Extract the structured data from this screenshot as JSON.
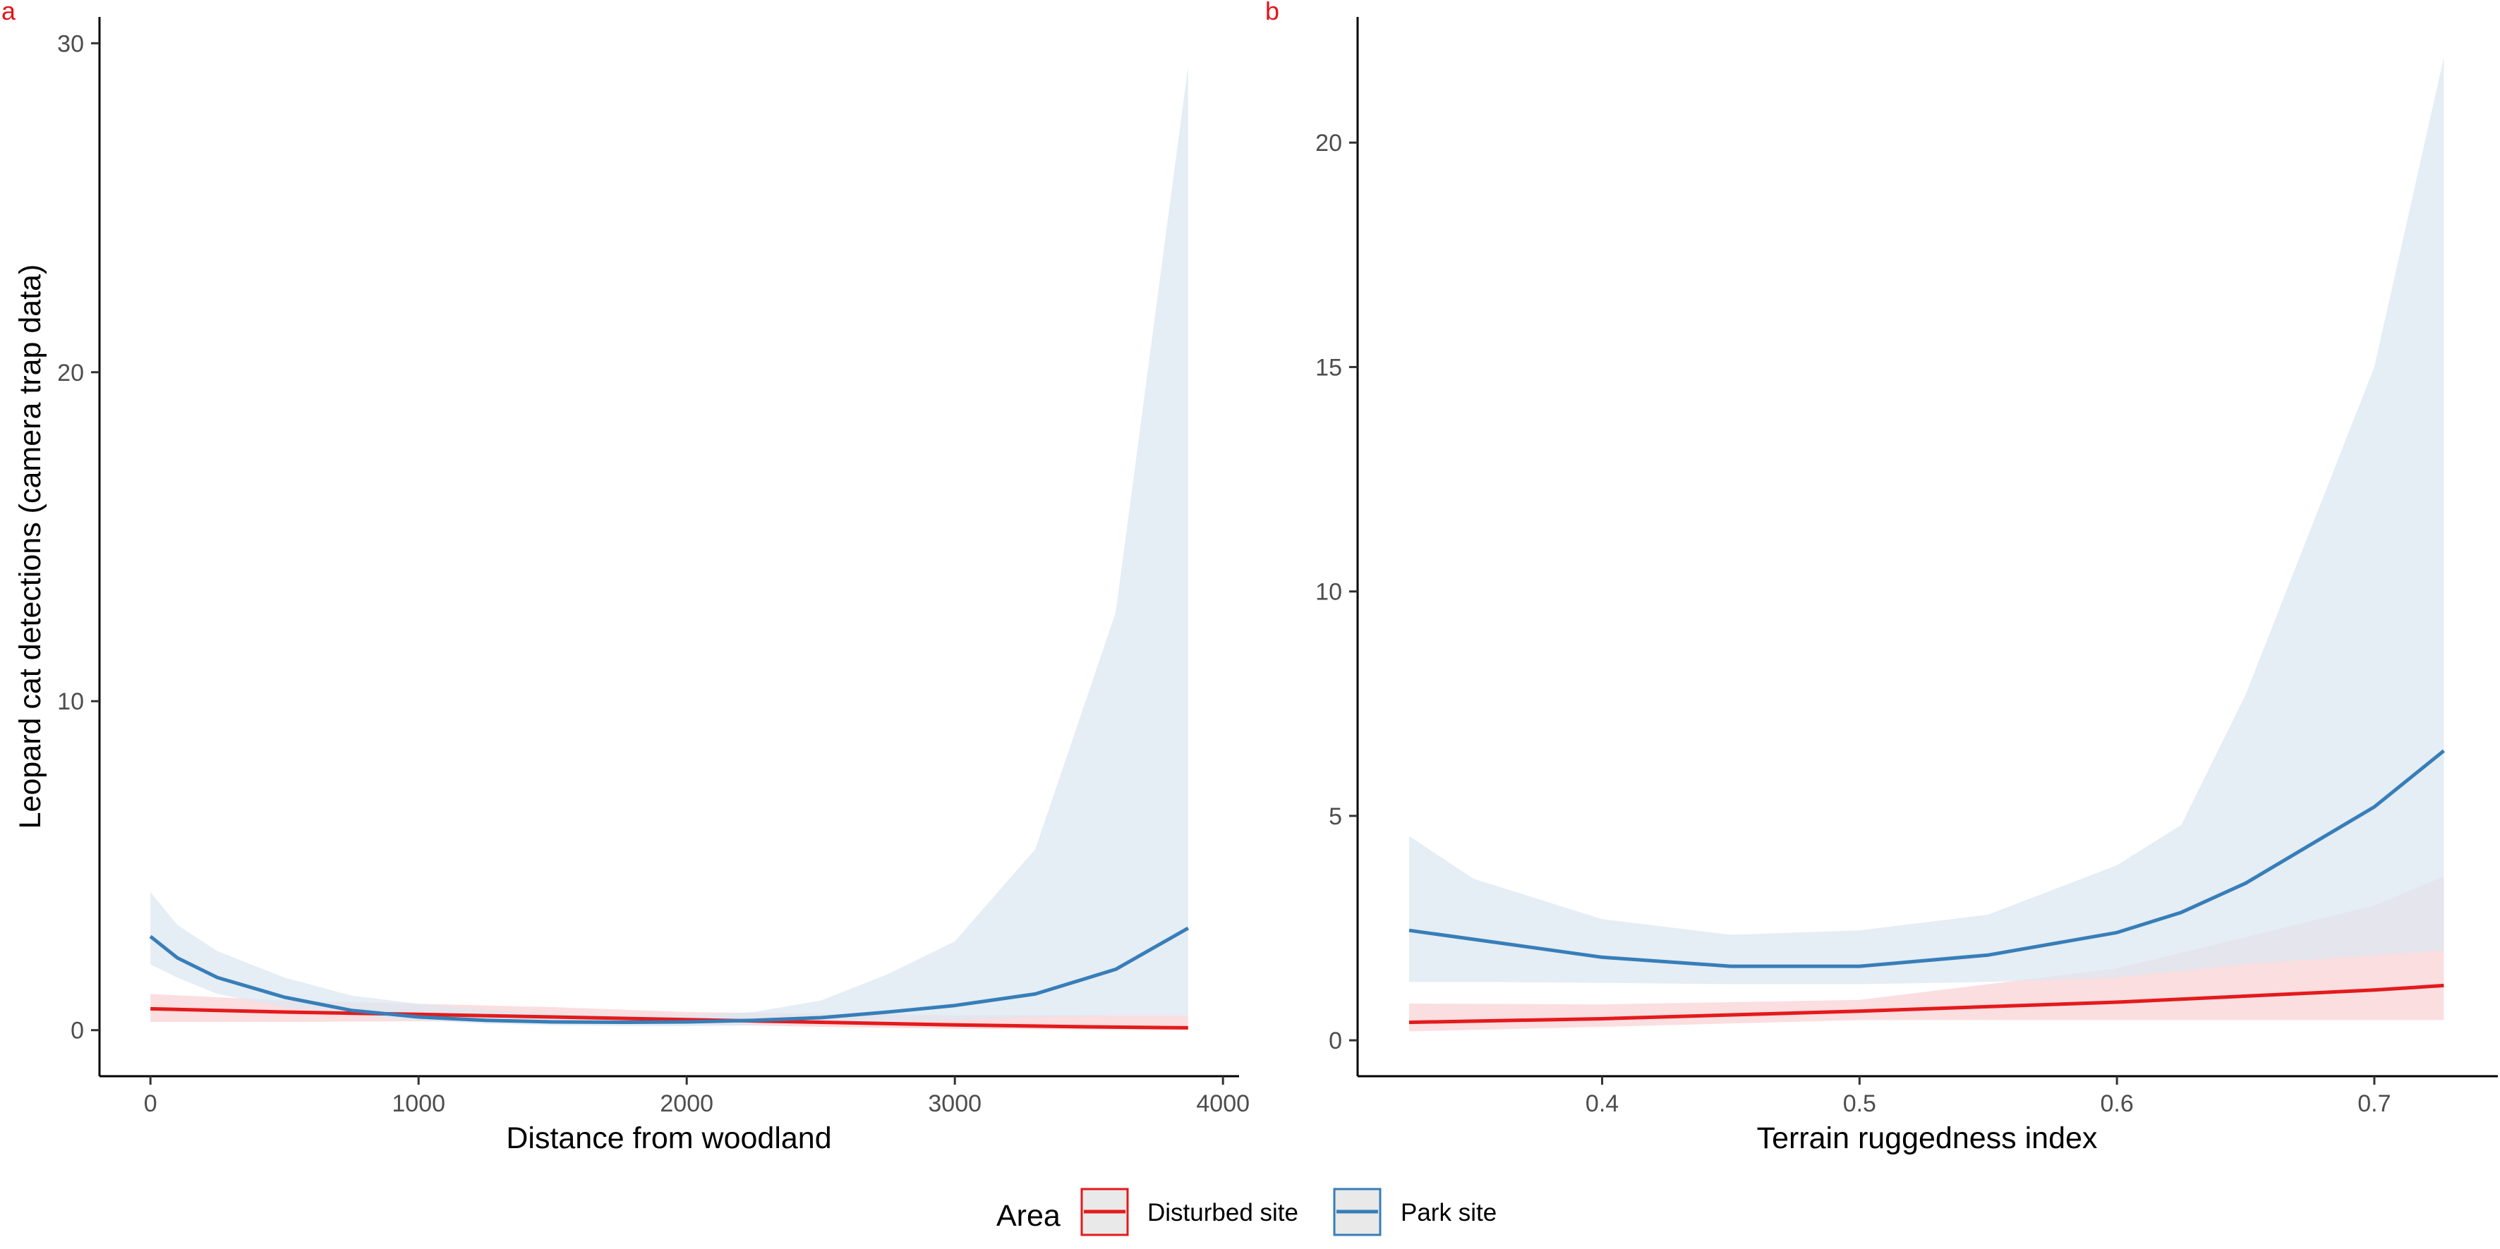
{
  "legend": {
    "title": "Area",
    "entries": [
      {
        "label": "Disturbed site",
        "color": "#E41A1C"
      },
      {
        "label": "Park site",
        "color": "#377EB8"
      }
    ]
  },
  "colors": {
    "disturbed_line": "#E41A1C",
    "disturbed_ribbon": "#F8D3D6",
    "park_line": "#377EB8",
    "park_ribbon": "#DCE7F2"
  },
  "chart_data": [
    {
      "panel": "a",
      "type": "line",
      "xlabel": "Distance from woodland",
      "ylabel": "Leopard cat detections (camera trap data)",
      "xlim": [
        -190,
        4060
      ],
      "ylim": [
        -1.4,
        30.8
      ],
      "xticks": [
        0,
        1000,
        2000,
        3000,
        4000
      ],
      "yticks": [
        0,
        10,
        20,
        30
      ],
      "grid": false,
      "legend_position": "bottom",
      "series": [
        {
          "name": "Disturbed site",
          "x": [
            0,
            500,
            1000,
            1500,
            2000,
            2500,
            3000,
            3500,
            3870
          ],
          "y": [
            0.65,
            0.55,
            0.48,
            0.4,
            0.32,
            0.24,
            0.16,
            0.1,
            0.07
          ],
          "lower": [
            0.25,
            0.25,
            0.27,
            0.25,
            0.18,
            0.1,
            0.04,
            0.02,
            0.01
          ],
          "upper": [
            1.1,
            0.9,
            0.8,
            0.7,
            0.55,
            0.5,
            0.45,
            0.45,
            0.45
          ]
        },
        {
          "name": "Park site",
          "x": [
            0,
            100,
            250,
            500,
            750,
            1000,
            1250,
            1500,
            1750,
            2000,
            2250,
            2500,
            2750,
            3000,
            3300,
            3600,
            3870
          ],
          "y": [
            2.85,
            2.2,
            1.6,
            1.0,
            0.6,
            0.4,
            0.3,
            0.25,
            0.24,
            0.25,
            0.3,
            0.38,
            0.55,
            0.75,
            1.1,
            1.85,
            3.1
          ],
          "lower": [
            2.0,
            1.6,
            1.1,
            0.7,
            0.45,
            0.3,
            0.2,
            0.15,
            0.13,
            0.12,
            0.15,
            0.2,
            0.25,
            0.3,
            0.4,
            0.45,
            0.45
          ],
          "upper": [
            4.2,
            3.2,
            2.4,
            1.6,
            1.05,
            0.8,
            0.6,
            0.5,
            0.45,
            0.45,
            0.55,
            0.9,
            1.7,
            2.7,
            5.5,
            12.7,
            29.3
          ]
        }
      ]
    },
    {
      "panel": "b",
      "type": "line",
      "xlabel": "Terrain ruggedness index",
      "ylabel": "",
      "xlim": [
        0.305,
        0.748
      ],
      "ylim": [
        -0.8,
        22.8
      ],
      "xticks": [
        0.4,
        0.5,
        0.6,
        0.7
      ],
      "yticks": [
        0,
        5,
        10,
        15,
        20
      ],
      "grid": false,
      "legend_position": "bottom",
      "series": [
        {
          "name": "Disturbed site",
          "x": [
            0.325,
            0.4,
            0.5,
            0.6,
            0.7,
            0.727
          ],
          "y": [
            0.4,
            0.48,
            0.65,
            0.85,
            1.12,
            1.22
          ],
          "lower": [
            0.2,
            0.3,
            0.45,
            0.45,
            0.45,
            0.45
          ],
          "upper": [
            0.82,
            0.8,
            0.9,
            1.6,
            3.0,
            3.65
          ]
        },
        {
          "name": "Park site",
          "x": [
            0.325,
            0.35,
            0.4,
            0.45,
            0.5,
            0.55,
            0.6,
            0.625,
            0.65,
            0.7,
            0.727
          ],
          "y": [
            2.45,
            2.25,
            1.85,
            1.65,
            1.65,
            1.9,
            2.4,
            2.85,
            3.5,
            5.2,
            6.45
          ],
          "lower": [
            1.3,
            1.3,
            1.28,
            1.25,
            1.25,
            1.3,
            1.4,
            1.55,
            1.7,
            1.9,
            2.0
          ],
          "upper": [
            4.55,
            3.6,
            2.7,
            2.35,
            2.45,
            2.8,
            3.9,
            4.8,
            7.7,
            15.0,
            21.9
          ]
        }
      ]
    }
  ]
}
